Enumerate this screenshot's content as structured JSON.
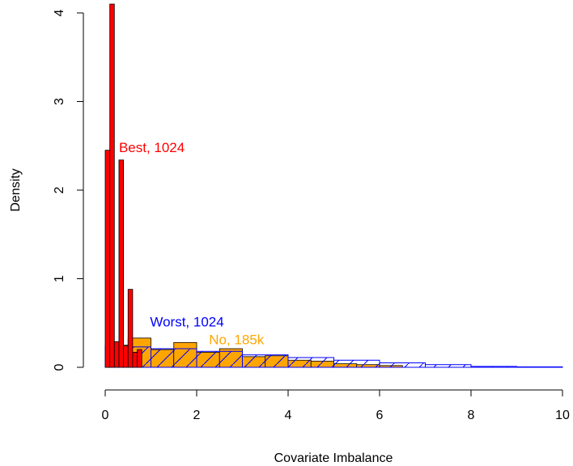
{
  "chart_data": {
    "type": "bar",
    "title": "",
    "xlabel": "Covariate Imbalance",
    "ylabel": "Density",
    "xlim": [
      0,
      10
    ],
    "ylim": [
      0,
      4
    ],
    "grid": false,
    "x_ticks": [
      "0",
      "2",
      "4",
      "6",
      "8",
      "10"
    ],
    "y_ticks": [
      "0",
      "1",
      "2",
      "3",
      "4"
    ],
    "series": [
      {
        "name": "No, 185k",
        "color": "#FFA500",
        "style": "filled",
        "bin_width": 0.5,
        "bin_starts": [
          0,
          0.5,
          1,
          1.5,
          2,
          2.5,
          3,
          3.5,
          4,
          4.5,
          5,
          5.5,
          6
        ],
        "values": [
          0.25,
          0.33,
          0.2,
          0.28,
          0.17,
          0.21,
          0.12,
          0.13,
          0.08,
          0.07,
          0.04,
          0.03,
          0.02
        ]
      },
      {
        "name": "Worst, 1024",
        "color": "#0000FF",
        "style": "hatched",
        "bin_width": 1,
        "bin_starts": [
          0,
          1,
          2,
          3,
          4,
          5,
          6,
          7,
          8,
          9
        ],
        "values": [
          0.23,
          0.21,
          0.18,
          0.14,
          0.11,
          0.08,
          0.05,
          0.03,
          0.01,
          0.005
        ]
      },
      {
        "name": "Best, 1024",
        "color": "#FF0000",
        "style": "filled",
        "bin_width": 0.1,
        "bin_starts": [
          0,
          0.1,
          0.2,
          0.3,
          0.4,
          0.5,
          0.6,
          0.7
        ],
        "values": [
          2.45,
          4.1,
          0.29,
          2.34,
          0.24,
          0.88,
          0.17,
          0.2
        ]
      }
    ],
    "annotations": [
      {
        "text": "Best, 1024",
        "color": "#FF0000",
        "x": 0.3,
        "y": 2.47
      },
      {
        "text": "Worst, 1024",
        "color": "#0000FF",
        "x": 0.98,
        "y": 0.5
      },
      {
        "text": "No, 185k",
        "color": "#FFA500",
        "x": 2.27,
        "y": 0.3
      }
    ]
  }
}
